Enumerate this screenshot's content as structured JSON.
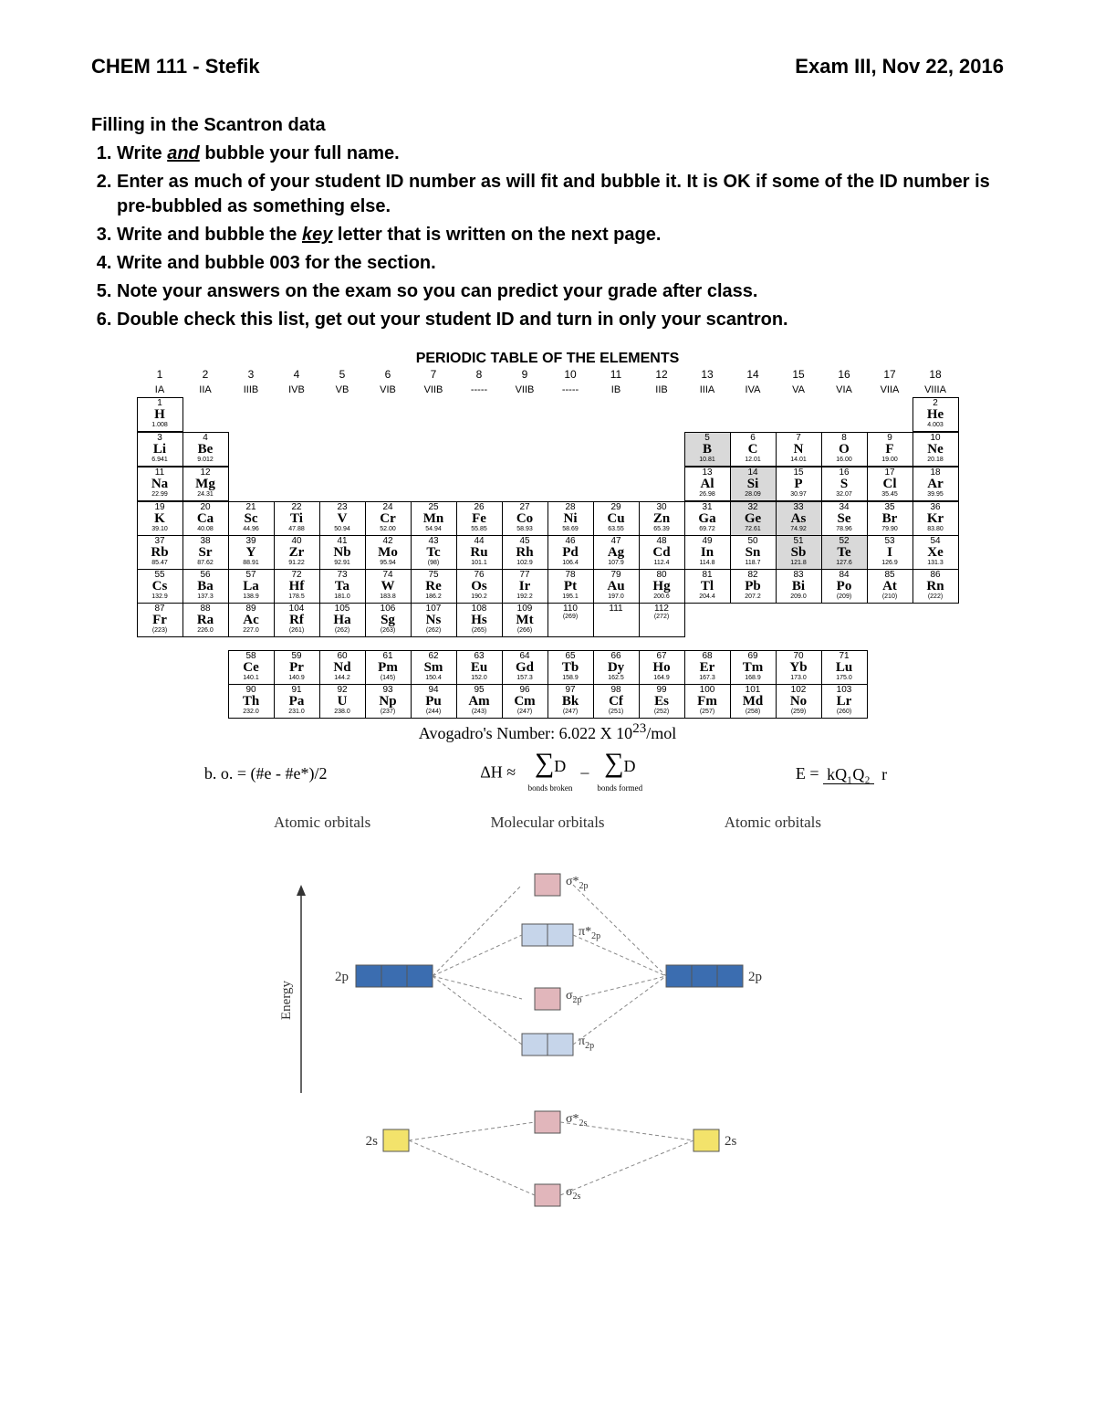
{
  "header": {
    "left": "CHEM 111 - Stefik",
    "right": "Exam III, Nov 22, 2016"
  },
  "section_title": "Filling in the Scantron data",
  "instructions": [
    {
      "pre": "Write ",
      "em": "and",
      "post": " bubble your full name."
    },
    {
      "pre": "Enter as much of your student ID number as will fit and bubble it.  It is OK if some of the ID number is pre-bubbled as something else.",
      "em": "",
      "post": ""
    },
    {
      "pre": "Write and bubble the ",
      "em": "key",
      "post": " letter that is written on the next page."
    },
    {
      "pre": "Write and bubble 003 for the section.",
      "em": "",
      "post": ""
    },
    {
      "pre": "Note your answers on the exam so you can predict your grade after class.",
      "em": "",
      "post": ""
    },
    {
      "pre": "Double check this list, get out your student ID and turn in only your scantron.",
      "em": "",
      "post": ""
    }
  ],
  "ptable_title": "PERIODIC TABLE OF THE ELEMENTS",
  "group_nums": [
    "1",
    "2",
    "3",
    "4",
    "5",
    "6",
    "7",
    "8",
    "9",
    "10",
    "11",
    "12",
    "13",
    "14",
    "15",
    "16",
    "17",
    "18"
  ],
  "group_lbls": [
    "IA",
    "IIA",
    "IIIB",
    "IVB",
    "VB",
    "VIB",
    "VIIB",
    "-----",
    "VIIB",
    "-----",
    "IB",
    "IIB",
    "IIIA",
    "IVA",
    "VA",
    "VIA",
    "VIIA",
    "VIIIA"
  ],
  "row1": [
    {
      "n": "1",
      "s": "H",
      "m": "1.008"
    },
    null,
    null,
    null,
    null,
    null,
    null,
    null,
    null,
    null,
    null,
    null,
    null,
    null,
    null,
    null,
    null,
    {
      "n": "2",
      "s": "He",
      "m": "4.003"
    }
  ],
  "row2": [
    {
      "n": "3",
      "s": "Li",
      "m": "6.941"
    },
    {
      "n": "4",
      "s": "Be",
      "m": "9.012"
    },
    null,
    null,
    null,
    null,
    null,
    null,
    null,
    null,
    null,
    null,
    {
      "n": "5",
      "s": "B",
      "m": "10.81",
      "sh": 1
    },
    {
      "n": "6",
      "s": "C",
      "m": "12.01"
    },
    {
      "n": "7",
      "s": "N",
      "m": "14.01"
    },
    {
      "n": "8",
      "s": "O",
      "m": "16.00"
    },
    {
      "n": "9",
      "s": "F",
      "m": "19.00"
    },
    {
      "n": "10",
      "s": "Ne",
      "m": "20.18"
    }
  ],
  "row3": [
    {
      "n": "11",
      "s": "Na",
      "m": "22.99"
    },
    {
      "n": "12",
      "s": "Mg",
      "m": "24.31"
    },
    null,
    null,
    null,
    null,
    null,
    null,
    null,
    null,
    null,
    null,
    {
      "n": "13",
      "s": "Al",
      "m": "26.98"
    },
    {
      "n": "14",
      "s": "Si",
      "m": "28.09",
      "sh": 1
    },
    {
      "n": "15",
      "s": "P",
      "m": "30.97"
    },
    {
      "n": "16",
      "s": "S",
      "m": "32.07"
    },
    {
      "n": "17",
      "s": "Cl",
      "m": "35.45"
    },
    {
      "n": "18",
      "s": "Ar",
      "m": "39.95"
    }
  ],
  "row4": [
    {
      "n": "19",
      "s": "K",
      "m": "39.10"
    },
    {
      "n": "20",
      "s": "Ca",
      "m": "40.08"
    },
    {
      "n": "21",
      "s": "Sc",
      "m": "44.96"
    },
    {
      "n": "22",
      "s": "Ti",
      "m": "47.88"
    },
    {
      "n": "23",
      "s": "V",
      "m": "50.94"
    },
    {
      "n": "24",
      "s": "Cr",
      "m": "52.00"
    },
    {
      "n": "25",
      "s": "Mn",
      "m": "54.94"
    },
    {
      "n": "26",
      "s": "Fe",
      "m": "55.85"
    },
    {
      "n": "27",
      "s": "Co",
      "m": "58.93"
    },
    {
      "n": "28",
      "s": "Ni",
      "m": "58.69"
    },
    {
      "n": "29",
      "s": "Cu",
      "m": "63.55"
    },
    {
      "n": "30",
      "s": "Zn",
      "m": "65.39"
    },
    {
      "n": "31",
      "s": "Ga",
      "m": "69.72"
    },
    {
      "n": "32",
      "s": "Ge",
      "m": "72.61",
      "sh": 1
    },
    {
      "n": "33",
      "s": "As",
      "m": "74.92",
      "sh": 1
    },
    {
      "n": "34",
      "s": "Se",
      "m": "78.96"
    },
    {
      "n": "35",
      "s": "Br",
      "m": "79.90"
    },
    {
      "n": "36",
      "s": "Kr",
      "m": "83.80"
    }
  ],
  "row5": [
    {
      "n": "37",
      "s": "Rb",
      "m": "85.47"
    },
    {
      "n": "38",
      "s": "Sr",
      "m": "87.62"
    },
    {
      "n": "39",
      "s": "Y",
      "m": "88.91"
    },
    {
      "n": "40",
      "s": "Zr",
      "m": "91.22"
    },
    {
      "n": "41",
      "s": "Nb",
      "m": "92.91"
    },
    {
      "n": "42",
      "s": "Mo",
      "m": "95.94"
    },
    {
      "n": "43",
      "s": "Tc",
      "m": "(98)"
    },
    {
      "n": "44",
      "s": "Ru",
      "m": "101.1"
    },
    {
      "n": "45",
      "s": "Rh",
      "m": "102.9"
    },
    {
      "n": "46",
      "s": "Pd",
      "m": "106.4"
    },
    {
      "n": "47",
      "s": "Ag",
      "m": "107.9"
    },
    {
      "n": "48",
      "s": "Cd",
      "m": "112.4"
    },
    {
      "n": "49",
      "s": "In",
      "m": "114.8"
    },
    {
      "n": "50",
      "s": "Sn",
      "m": "118.7"
    },
    {
      "n": "51",
      "s": "Sb",
      "m": "121.8",
      "sh": 1
    },
    {
      "n": "52",
      "s": "Te",
      "m": "127.6",
      "sh": 1
    },
    {
      "n": "53",
      "s": "I",
      "m": "126.9"
    },
    {
      "n": "54",
      "s": "Xe",
      "m": "131.3"
    }
  ],
  "row6": [
    {
      "n": "55",
      "s": "Cs",
      "m": "132.9"
    },
    {
      "n": "56",
      "s": "Ba",
      "m": "137.3"
    },
    {
      "n": "57",
      "s": "La",
      "m": "138.9"
    },
    {
      "n": "72",
      "s": "Hf",
      "m": "178.5"
    },
    {
      "n": "73",
      "s": "Ta",
      "m": "181.0"
    },
    {
      "n": "74",
      "s": "W",
      "m": "183.8"
    },
    {
      "n": "75",
      "s": "Re",
      "m": "186.2"
    },
    {
      "n": "76",
      "s": "Os",
      "m": "190.2"
    },
    {
      "n": "77",
      "s": "Ir",
      "m": "192.2"
    },
    {
      "n": "78",
      "s": "Pt",
      "m": "195.1"
    },
    {
      "n": "79",
      "s": "Au",
      "m": "197.0"
    },
    {
      "n": "80",
      "s": "Hg",
      "m": "200.6"
    },
    {
      "n": "81",
      "s": "Tl",
      "m": "204.4"
    },
    {
      "n": "82",
      "s": "Pb",
      "m": "207.2"
    },
    {
      "n": "83",
      "s": "Bi",
      "m": "209.0"
    },
    {
      "n": "84",
      "s": "Po",
      "m": "(209)"
    },
    {
      "n": "85",
      "s": "At",
      "m": "(210)"
    },
    {
      "n": "86",
      "s": "Rn",
      "m": "(222)"
    }
  ],
  "row7": [
    {
      "n": "87",
      "s": "Fr",
      "m": "(223)"
    },
    {
      "n": "88",
      "s": "Ra",
      "m": "226.0"
    },
    {
      "n": "89",
      "s": "Ac",
      "m": "227.0"
    },
    {
      "n": "104",
      "s": "Rf",
      "m": "(261)"
    },
    {
      "n": "105",
      "s": "Ha",
      "m": "(262)"
    },
    {
      "n": "106",
      "s": "Sg",
      "m": "(263)"
    },
    {
      "n": "107",
      "s": "Ns",
      "m": "(262)"
    },
    {
      "n": "108",
      "s": "Hs",
      "m": "(265)"
    },
    {
      "n": "109",
      "s": "Mt",
      "m": "(266)"
    },
    {
      "n": "110",
      "s": "",
      "m": "(269)"
    },
    {
      "n": "111",
      "s": "",
      "m": ""
    },
    {
      "n": "112",
      "s": "",
      "m": "(272)"
    },
    null,
    null,
    null,
    null,
    null,
    null
  ],
  "lanth": [
    {
      "n": "58",
      "s": "Ce",
      "m": "140.1"
    },
    {
      "n": "59",
      "s": "Pr",
      "m": "140.9"
    },
    {
      "n": "60",
      "s": "Nd",
      "m": "144.2"
    },
    {
      "n": "61",
      "s": "Pm",
      "m": "(145)"
    },
    {
      "n": "62",
      "s": "Sm",
      "m": "150.4"
    },
    {
      "n": "63",
      "s": "Eu",
      "m": "152.0"
    },
    {
      "n": "64",
      "s": "Gd",
      "m": "157.3"
    },
    {
      "n": "65",
      "s": "Tb",
      "m": "158.9"
    },
    {
      "n": "66",
      "s": "Dy",
      "m": "162.5"
    },
    {
      "n": "67",
      "s": "Ho",
      "m": "164.9"
    },
    {
      "n": "68",
      "s": "Er",
      "m": "167.3"
    },
    {
      "n": "69",
      "s": "Tm",
      "m": "168.9"
    },
    {
      "n": "70",
      "s": "Yb",
      "m": "173.0"
    },
    {
      "n": "71",
      "s": "Lu",
      "m": "175.0"
    }
  ],
  "actin": [
    {
      "n": "90",
      "s": "Th",
      "m": "232.0"
    },
    {
      "n": "91",
      "s": "Pa",
      "m": "231.0"
    },
    {
      "n": "92",
      "s": "U",
      "m": "238.0"
    },
    {
      "n": "93",
      "s": "Np",
      "m": "(237)"
    },
    {
      "n": "94",
      "s": "Pu",
      "m": "(244)"
    },
    {
      "n": "95",
      "s": "Am",
      "m": "(243)"
    },
    {
      "n": "96",
      "s": "Cm",
      "m": "(247)"
    },
    {
      "n": "97",
      "s": "Bk",
      "m": "(247)"
    },
    {
      "n": "98",
      "s": "Cf",
      "m": "(251)"
    },
    {
      "n": "99",
      "s": "Es",
      "m": "(252)"
    },
    {
      "n": "100",
      "s": "Fm",
      "m": "(257)"
    },
    {
      "n": "101",
      "s": "Md",
      "m": "(258)"
    },
    {
      "n": "102",
      "s": "No",
      "m": "(259)"
    },
    {
      "n": "103",
      "s": "Lr",
      "m": "(260)"
    }
  ],
  "avogadro_pre": "Avogadro's Number:  6.022 X 10",
  "avogadro_sup": "23",
  "avogadro_post": "/mol",
  "formula_bo": "b. o. = (#e - #e*)/2",
  "formula_dh_lhs": "ΔH ≈",
  "formula_dh_sub1": "bonds broken",
  "formula_dh_sub2": "bonds formed",
  "formula_e_lhs": "E =",
  "formula_e_top": "kQ₁Q₂",
  "formula_e_bot": "r",
  "mo_titles": [
    "Atomic orbitals",
    "Molecular orbitals",
    "Atomic orbitals"
  ],
  "mo_labels": {
    "energy": "Energy",
    "p_left": "2p",
    "p_right": "2p",
    "s_left": "2s",
    "s_right": "2s",
    "sigma_star_2p": "σ*₂ₚ",
    "pi_star_2p": "π*₂ₚ",
    "sigma_2p": "σ₂ₚ",
    "pi_2p": "π₂ₚ",
    "sigma_star_2s": "σ*₂ₛ",
    "sigma_2s": "σ₂ₛ"
  },
  "colors": {
    "p_blue": "#3b6db0",
    "pi_light": "#c6d5ea",
    "sigma_pink": "#e1b6bb",
    "s_yellow": "#f3e36b",
    "line": "#666666",
    "dash": "#888888"
  }
}
